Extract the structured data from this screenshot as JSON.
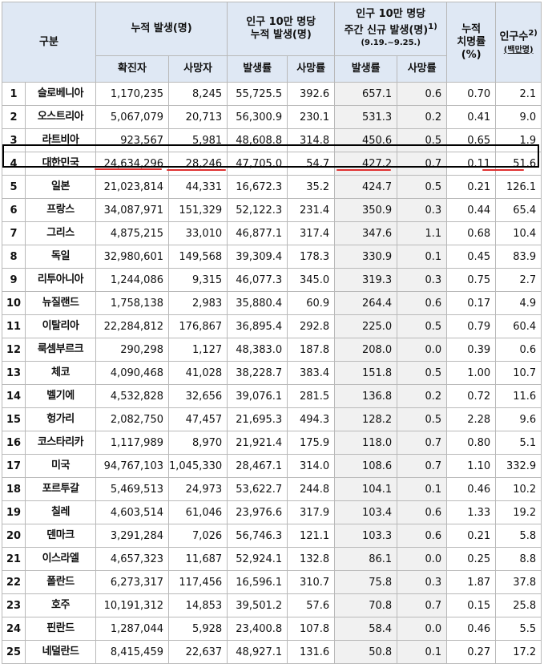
{
  "header": {
    "category": "구분",
    "cumulative_group": "누적 발생(명)",
    "per100k_group_line1": "인구 10만 명당",
    "per100k_group_line2": "누적 발생(명)",
    "weekly_group_line1": "인구 10만 명당",
    "weekly_group_line2": "주간 신규 발생(명)",
    "weekly_group_note": "1)",
    "weekly_group_period": "(9.19.~9.25.)",
    "fatality_line1": "누적",
    "fatality_line2": "치명률",
    "fatality_line3": "(%)",
    "population_line1": "인구수",
    "population_note": "2)",
    "population_line2": "(백만명)",
    "confirmed": "확진자",
    "deaths": "사망자",
    "incidence_rate": "발생률",
    "death_rate": "사망률",
    "weekly_incidence_rate": "발생률",
    "weekly_death_rate": "사망률"
  },
  "rows": [
    {
      "rank": "1",
      "country": "슬로베니아",
      "confirmed": "1,170,235",
      "deaths": "8,245",
      "incidence": "55,725.5",
      "mortality": "392.6",
      "weekly_incidence": "657.1",
      "weekly_mortality": "0.6",
      "cfr": "0.70",
      "population": "2.1"
    },
    {
      "rank": "2",
      "country": "오스트리아",
      "confirmed": "5,067,079",
      "deaths": "20,713",
      "incidence": "56,300.9",
      "mortality": "230.1",
      "weekly_incidence": "531.3",
      "weekly_mortality": "0.2",
      "cfr": "0.41",
      "population": "9.0"
    },
    {
      "rank": "3",
      "country": "라트비아",
      "confirmed": "923,567",
      "deaths": "5,981",
      "incidence": "48,608.8",
      "mortality": "314.8",
      "weekly_incidence": "450.6",
      "weekly_mortality": "0.5",
      "cfr": "0.65",
      "population": "1.9"
    },
    {
      "rank": "4",
      "country": "대한민국",
      "confirmed": "24,634,296",
      "deaths": "28,246",
      "incidence": "47,705.0",
      "mortality": "54.7",
      "weekly_incidence": "427.2",
      "weekly_mortality": "0.7",
      "cfr": "0.11",
      "population": "51.6"
    },
    {
      "rank": "5",
      "country": "일본",
      "confirmed": "21,023,814",
      "deaths": "44,331",
      "incidence": "16,672.3",
      "mortality": "35.2",
      "weekly_incidence": "424.7",
      "weekly_mortality": "0.5",
      "cfr": "0.21",
      "population": "126.1"
    },
    {
      "rank": "6",
      "country": "프랑스",
      "confirmed": "34,087,971",
      "deaths": "151,329",
      "incidence": "52,122.3",
      "mortality": "231.4",
      "weekly_incidence": "350.9",
      "weekly_mortality": "0.3",
      "cfr": "0.44",
      "population": "65.4"
    },
    {
      "rank": "7",
      "country": "그리스",
      "confirmed": "4,875,215",
      "deaths": "33,010",
      "incidence": "46,877.1",
      "mortality": "317.4",
      "weekly_incidence": "347.6",
      "weekly_mortality": "1.1",
      "cfr": "0.68",
      "population": "10.4"
    },
    {
      "rank": "8",
      "country": "독일",
      "confirmed": "32,980,601",
      "deaths": "149,568",
      "incidence": "39,309.4",
      "mortality": "178.3",
      "weekly_incidence": "330.9",
      "weekly_mortality": "0.1",
      "cfr": "0.45",
      "population": "83.9"
    },
    {
      "rank": "9",
      "country": "리투아니아",
      "confirmed": "1,244,086",
      "deaths": "9,315",
      "incidence": "46,077.3",
      "mortality": "345.0",
      "weekly_incidence": "319.3",
      "weekly_mortality": "0.3",
      "cfr": "0.75",
      "population": "2.7"
    },
    {
      "rank": "10",
      "country": "뉴질랜드",
      "confirmed": "1,758,138",
      "deaths": "2,983",
      "incidence": "35,880.4",
      "mortality": "60.9",
      "weekly_incidence": "264.4",
      "weekly_mortality": "0.6",
      "cfr": "0.17",
      "population": "4.9"
    },
    {
      "rank": "11",
      "country": "이탈리아",
      "confirmed": "22,284,812",
      "deaths": "176,867",
      "incidence": "36,895.4",
      "mortality": "292.8",
      "weekly_incidence": "225.0",
      "weekly_mortality": "0.5",
      "cfr": "0.79",
      "population": "60.4"
    },
    {
      "rank": "12",
      "country": "룩셈부르크",
      "confirmed": "290,298",
      "deaths": "1,127",
      "incidence": "48,383.0",
      "mortality": "187.8",
      "weekly_incidence": "208.0",
      "weekly_mortality": "0.0",
      "cfr": "0.39",
      "population": "0.6"
    },
    {
      "rank": "13",
      "country": "체코",
      "confirmed": "4,090,468",
      "deaths": "41,028",
      "incidence": "38,228.7",
      "mortality": "383.4",
      "weekly_incidence": "151.8",
      "weekly_mortality": "0.5",
      "cfr": "1.00",
      "population": "10.7"
    },
    {
      "rank": "14",
      "country": "벨기에",
      "confirmed": "4,532,828",
      "deaths": "32,656",
      "incidence": "39,076.1",
      "mortality": "281.5",
      "weekly_incidence": "136.8",
      "weekly_mortality": "0.2",
      "cfr": "0.72",
      "population": "11.6"
    },
    {
      "rank": "15",
      "country": "헝가리",
      "confirmed": "2,082,750",
      "deaths": "47,457",
      "incidence": "21,695.3",
      "mortality": "494.3",
      "weekly_incidence": "128.2",
      "weekly_mortality": "0.5",
      "cfr": "2.28",
      "population": "9.6"
    },
    {
      "rank": "16",
      "country": "코스타리카",
      "confirmed": "1,117,989",
      "deaths": "8,970",
      "incidence": "21,921.4",
      "mortality": "175.9",
      "weekly_incidence": "118.0",
      "weekly_mortality": "0.7",
      "cfr": "0.80",
      "population": "5.1"
    },
    {
      "rank": "17",
      "country": "미국",
      "confirmed": "94,767,103",
      "deaths": "1,045,330",
      "incidence": "28,467.1",
      "mortality": "314.0",
      "weekly_incidence": "108.6",
      "weekly_mortality": "0.7",
      "cfr": "1.10",
      "population": "332.9"
    },
    {
      "rank": "18",
      "country": "포르투갈",
      "confirmed": "5,469,513",
      "deaths": "24,973",
      "incidence": "53,622.7",
      "mortality": "244.8",
      "weekly_incidence": "104.1",
      "weekly_mortality": "0.1",
      "cfr": "0.46",
      "population": "10.2"
    },
    {
      "rank": "19",
      "country": "칠레",
      "confirmed": "4,603,514",
      "deaths": "61,046",
      "incidence": "23,976.6",
      "mortality": "317.9",
      "weekly_incidence": "103.4",
      "weekly_mortality": "0.6",
      "cfr": "1.33",
      "population": "19.2"
    },
    {
      "rank": "20",
      "country": "덴마크",
      "confirmed": "3,291,284",
      "deaths": "7,026",
      "incidence": "56,746.3",
      "mortality": "121.1",
      "weekly_incidence": "103.3",
      "weekly_mortality": "0.6",
      "cfr": "0.21",
      "population": "5.8"
    },
    {
      "rank": "21",
      "country": "이스라엘",
      "confirmed": "4,657,323",
      "deaths": "11,687",
      "incidence": "52,924.1",
      "mortality": "132.8",
      "weekly_incidence": "86.1",
      "weekly_mortality": "0.0",
      "cfr": "0.25",
      "population": "8.8"
    },
    {
      "rank": "22",
      "country": "폴란드",
      "confirmed": "6,273,317",
      "deaths": "117,456",
      "incidence": "16,596.1",
      "mortality": "310.7",
      "weekly_incidence": "75.8",
      "weekly_mortality": "0.3",
      "cfr": "1.87",
      "population": "37.8"
    },
    {
      "rank": "23",
      "country": "호주",
      "confirmed": "10,191,312",
      "deaths": "14,853",
      "incidence": "39,501.2",
      "mortality": "57.6",
      "weekly_incidence": "70.8",
      "weekly_mortality": "0.7",
      "cfr": "0.15",
      "population": "25.8"
    },
    {
      "rank": "24",
      "country": "핀란드",
      "confirmed": "1,287,044",
      "deaths": "5,928",
      "incidence": "23,400.8",
      "mortality": "107.8",
      "weekly_incidence": "58.4",
      "weekly_mortality": "0.0",
      "cfr": "0.46",
      "population": "5.5"
    },
    {
      "rank": "25",
      "country": "네덜란드",
      "confirmed": "8,415,459",
      "deaths": "22,637",
      "incidence": "48,927.1",
      "mortality": "131.6",
      "weekly_incidence": "50.8",
      "weekly_mortality": "0.1",
      "cfr": "0.27",
      "population": "17.2"
    }
  ],
  "colors": {
    "header_bg": "#dfe8f4",
    "weekly_bg": "#f1f1f1",
    "highlight_border": "#000000",
    "underline": "#e03030"
  }
}
